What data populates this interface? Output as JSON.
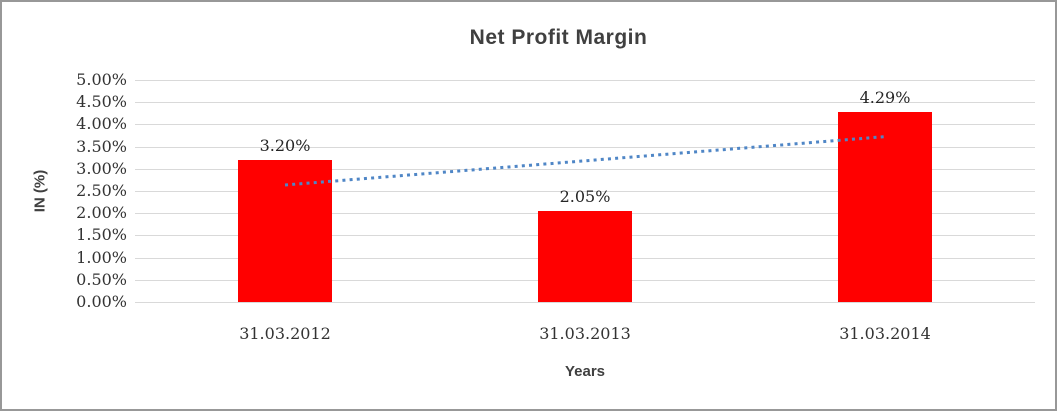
{
  "chart_data": {
    "type": "bar",
    "title": "Net Profit Margin",
    "xlabel": "Years",
    "ylabel": "IN (%)",
    "categories": [
      "31.03.2012",
      "31.03.2013",
      "31.03.2014"
    ],
    "values": [
      3.2,
      2.05,
      4.29
    ],
    "data_labels": [
      "3.20%",
      "2.05%",
      "4.29%"
    ],
    "ylim": [
      0,
      5
    ],
    "ytick_step": 0.5,
    "ytick_labels": [
      "0.00%",
      "0.50%",
      "1.00%",
      "1.50%",
      "2.00%",
      "2.50%",
      "3.00%",
      "3.50%",
      "4.00%",
      "4.50%",
      "5.00%"
    ],
    "grid": true,
    "legend": false,
    "bar_color": "#ff0000",
    "gridline_color": "#d9d9d9",
    "text_color": "#404040",
    "trendline": {
      "type": "linear",
      "style": "dotted",
      "color": "#4f86c6",
      "start_value": 2.635,
      "end_value": 3.725
    }
  }
}
